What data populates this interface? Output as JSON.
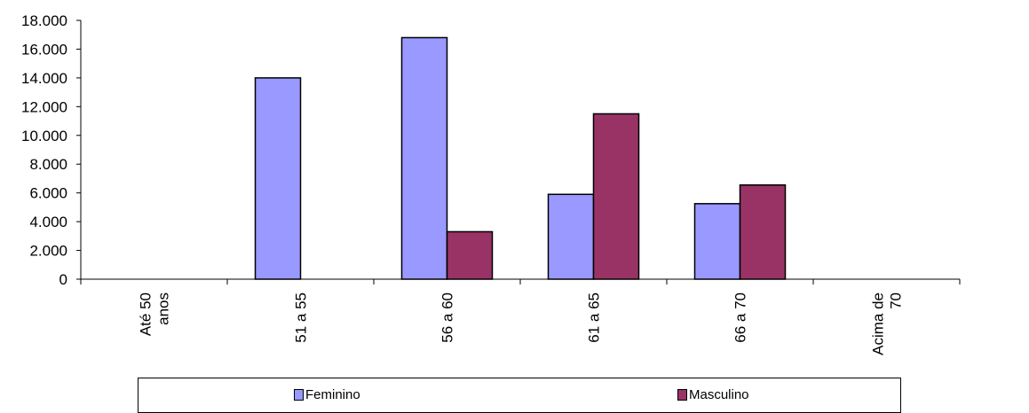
{
  "chart_data": {
    "type": "bar",
    "categories": [
      "Até 50 anos",
      "51 a  55",
      "56 a 60",
      "61 a 65",
      "66 a 70",
      "Acima de 70"
    ],
    "category_lines": [
      [
        "Até 50",
        "anos"
      ],
      [
        "51 a  55"
      ],
      [
        "56 a 60"
      ],
      [
        "61 a 65"
      ],
      [
        "66 a 70"
      ],
      [
        "Acima de",
        "70"
      ]
    ],
    "series": [
      {
        "name": "Feminino",
        "color": "#9999FF",
        "values": [
          0,
          14000,
          16800,
          5900,
          5250,
          0
        ]
      },
      {
        "name": "Masculino",
        "color": "#993366",
        "values": [
          0,
          0,
          3300,
          11500,
          6550,
          0
        ]
      }
    ],
    "yticks": [
      "0",
      "2.000",
      "4.000",
      "6.000",
      "8.000",
      "10.000",
      "12.000",
      "14.000",
      "16.000",
      "18.000"
    ],
    "ylim": [
      0,
      18000
    ],
    "title": "",
    "xlabel": "",
    "ylabel": "",
    "legend": "bottom",
    "grid": false
  }
}
